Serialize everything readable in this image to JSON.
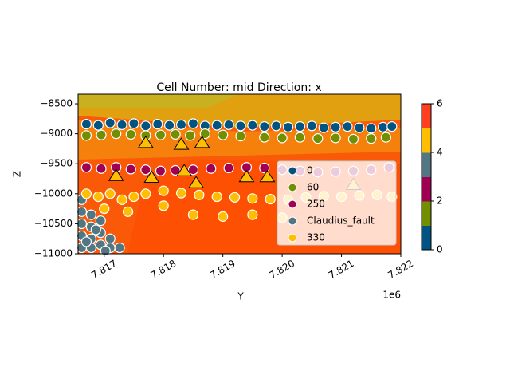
{
  "chart_data": {
    "type": "scatter",
    "title": "Cell Number: mid Direction: x",
    "x_label": "Y",
    "y_label": "Z",
    "x_offset_text": "1e6",
    "xlim": [
      7816560,
      7822000
    ],
    "ylim": [
      -11000,
      -8340
    ],
    "xticks": [
      {
        "value": 7817000,
        "label": "7.817"
      },
      {
        "value": 7818000,
        "label": "7.818"
      },
      {
        "value": 7819000,
        "label": "7.819"
      },
      {
        "value": 7820000,
        "label": "7.820"
      },
      {
        "value": 7821000,
        "label": "7.821"
      },
      {
        "value": 7822000,
        "label": "7.822"
      }
    ],
    "yticks": [
      {
        "value": -8500,
        "label": "−8500"
      },
      {
        "value": -9000,
        "label": "−9000"
      },
      {
        "value": -9500,
        "label": "−9500"
      },
      {
        "value": -10000,
        "label": "−10000"
      },
      {
        "value": -10500,
        "label": "−10500"
      },
      {
        "value": -11000,
        "label": "−11000"
      }
    ],
    "legend": "lower right",
    "series": [
      {
        "name": "0",
        "color": "#015482",
        "x": [
          7816700,
          7816900,
          7817100,
          7817300,
          7817500,
          7817700,
          7817900,
          7818100,
          7818300,
          7818500,
          7818700,
          7818900,
          7819100,
          7819300,
          7819500,
          7819700,
          7819900,
          7820100,
          7820300,
          7820500,
          7820700,
          7820900,
          7821100,
          7821300,
          7821500,
          7821700,
          7821850
        ],
        "y": [
          -8840,
          -8860,
          -8820,
          -8850,
          -8830,
          -8870,
          -8840,
          -8860,
          -8850,
          -8830,
          -8870,
          -8860,
          -8850,
          -8870,
          -8860,
          -8880,
          -8870,
          -8890,
          -8880,
          -8870,
          -8900,
          -8890,
          -8880,
          -8900,
          -8910,
          -8890,
          -8880
        ]
      },
      {
        "name": "60",
        "color": "#728f02",
        "x": [
          7816700,
          7816950,
          7817200,
          7817450,
          7817700,
          7817950,
          7818200,
          7818450,
          7818700,
          7819000,
          7819300,
          7819700,
          7820000,
          7820300,
          7820600,
          7820900,
          7821200,
          7821500,
          7821750
        ],
        "y": [
          -9030,
          -9020,
          -9000,
          -9010,
          -9030,
          -9020,
          -9010,
          -9030,
          -9000,
          -9020,
          -9040,
          -9060,
          -9070,
          -9060,
          -9080,
          -9070,
          -9090,
          -9080,
          -9060
        ]
      },
      {
        "name": "250",
        "color": "#9f0052",
        "x": [
          7816700,
          7816950,
          7817200,
          7817450,
          7817700,
          7817950,
          7818200,
          7818500,
          7818800,
          7819100,
          7819400,
          7819700,
          7820000,
          7820300,
          7820600,
          7820900,
          7821200,
          7821500,
          7821800
        ],
        "y": [
          -9560,
          -9580,
          -9560,
          -9590,
          -9600,
          -9620,
          -9610,
          -9600,
          -9580,
          -9570,
          -9560,
          -9570,
          -9600,
          -9620,
          -9640,
          -9630,
          -9620,
          -9600,
          -9560
        ]
      },
      {
        "name": "Claudius_fault",
        "color": "#527682",
        "x": [
          7816620,
          7816620,
          7816620,
          7816620,
          7816620,
          7816780,
          7816780,
          7816780,
          7816780,
          7816940,
          7816940,
          7816940,
          7817100,
          7817100,
          7817260,
          7816700,
          7816860,
          7817020
        ],
        "y": [
          -10300,
          -10500,
          -10700,
          -10900,
          -10100,
          -10550,
          -10750,
          -10900,
          -10350,
          -10650,
          -10850,
          -10450,
          -10750,
          -10900,
          -10900,
          -10800,
          -10600,
          -10950
        ]
      },
      {
        "name": "330",
        "color": "#ffbe00",
        "x": [
          7816700,
          7816900,
          7817100,
          7817300,
          7817500,
          7817700,
          7818000,
          7818300,
          7818600,
          7818900,
          7819200,
          7819500,
          7819800,
          7820100,
          7820400,
          7820700,
          7821000,
          7821300,
          7821600,
          7821850,
          7817000,
          7817400,
          7818000,
          7818500,
          7819000,
          7819500,
          7820000
        ],
        "y": [
          -10000,
          -10050,
          -10000,
          -10100,
          -10050,
          -10000,
          -9950,
          -9990,
          -10020,
          -10050,
          -10060,
          -10080,
          -10090,
          -10100,
          -10060,
          -10040,
          -10050,
          -10030,
          -10020,
          -10050,
          -10250,
          -10300,
          -10200,
          -10350,
          -10380,
          -10350,
          -10400
        ]
      }
    ],
    "orientations": {
      "color": "#ffbe00",
      "x": [
        7817700,
        7818300,
        7818650,
        7817200,
        7817800,
        7818350,
        7818550,
        7819400,
        7819750,
        7821200
      ],
      "y": [
        -9150,
        -9180,
        -9150,
        -9700,
        -9730,
        -9620,
        -9820,
        -9720,
        -9720,
        -9850
      ]
    },
    "colorbar": {
      "colors": [
        "#015482",
        "#728f02",
        "#9f0052",
        "#527682",
        "#ffbe00",
        "#ff3f20"
      ],
      "lim": [
        0,
        6
      ],
      "ticks": [
        0,
        2,
        4,
        6
      ]
    }
  }
}
